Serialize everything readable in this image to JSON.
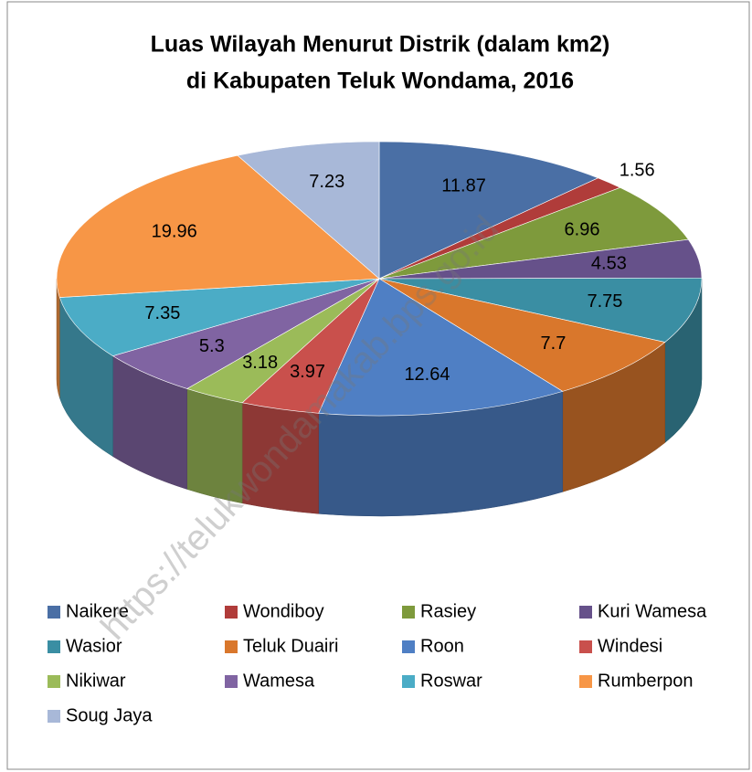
{
  "chart_data": {
    "type": "pie3d",
    "title": [
      "Luas Wilayah Menurut Distrik (dalam km2)",
      "di Kabupaten Teluk Wondama, 2016"
    ],
    "categories": [
      "Naikere",
      "Wondiboy",
      "Rasiey",
      "Kuri Wamesa",
      "Wasior",
      "Teluk Duairi",
      "Roon",
      "Windesi",
      "Nikiwar",
      "Wamesa",
      "Roswar",
      "Rumberpon",
      "Soug Jaya"
    ],
    "values": [
      11.87,
      1.56,
      6.96,
      4.53,
      7.75,
      7.7,
      12.64,
      3.97,
      3.18,
      5.3,
      7.35,
      19.96,
      7.23
    ],
    "colors": [
      "#4a6fa5",
      "#b03c3a",
      "#7e9a3c",
      "#66518a",
      "#3a8ea3",
      "#d9772c",
      "#4f7fc4",
      "#c9504c",
      "#9bbb59",
      "#8064a2",
      "#4bacc6",
      "#f79646",
      "#a8b8d8"
    ],
    "legend": "bottom",
    "watermark": "https://telukwondamakab.bps.go.id"
  }
}
